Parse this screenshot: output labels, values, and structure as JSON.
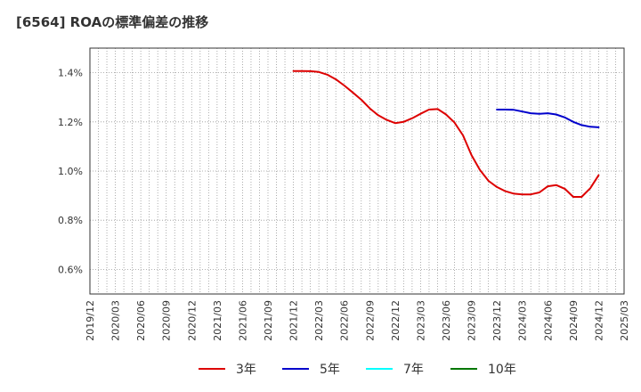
{
  "chart_data": {
    "type": "line",
    "title": "[6564]  ROAの標準偏差の推移",
    "xlabel": "",
    "ylabel": "",
    "ylim": [
      0.5,
      1.5
    ],
    "y_ticks": [
      {
        "value": 0.6,
        "label": "0.6%"
      },
      {
        "value": 0.8,
        "label": "0.8%"
      },
      {
        "value": 1.0,
        "label": "1.0%"
      },
      {
        "value": 1.2,
        "label": "1.2%"
      },
      {
        "value": 1.4,
        "label": "1.4%"
      }
    ],
    "x_categories": [
      "2019/12",
      "2020/03",
      "2020/06",
      "2020/09",
      "2020/12",
      "2021/03",
      "2021/06",
      "2021/09",
      "2021/12",
      "2022/03",
      "2022/06",
      "2022/09",
      "2022/12",
      "2023/03",
      "2023/06",
      "2023/09",
      "2023/12",
      "2024/03",
      "2024/06",
      "2024/09",
      "2024/12",
      "2025/03"
    ],
    "grid": true,
    "series": [
      {
        "name": "3年",
        "color": "#dd0000",
        "points": [
          {
            "x": 8.0,
            "y": 1.407
          },
          {
            "x": 8.33,
            "y": 1.407
          },
          {
            "x": 8.67,
            "y": 1.406
          },
          {
            "x": 9.0,
            "y": 1.403
          },
          {
            "x": 9.33,
            "y": 1.392
          },
          {
            "x": 9.67,
            "y": 1.373
          },
          {
            "x": 10.0,
            "y": 1.348
          },
          {
            "x": 10.33,
            "y": 1.32
          },
          {
            "x": 10.67,
            "y": 1.29
          },
          {
            "x": 11.0,
            "y": 1.255
          },
          {
            "x": 11.33,
            "y": 1.227
          },
          {
            "x": 11.67,
            "y": 1.208
          },
          {
            "x": 12.0,
            "y": 1.195
          },
          {
            "x": 12.33,
            "y": 1.2
          },
          {
            "x": 12.67,
            "y": 1.215
          },
          {
            "x": 13.0,
            "y": 1.233
          },
          {
            "x": 13.33,
            "y": 1.25
          },
          {
            "x": 13.67,
            "y": 1.252
          },
          {
            "x": 14.0,
            "y": 1.23
          },
          {
            "x": 14.33,
            "y": 1.198
          },
          {
            "x": 14.67,
            "y": 1.145
          },
          {
            "x": 15.0,
            "y": 1.065
          },
          {
            "x": 15.33,
            "y": 1.005
          },
          {
            "x": 15.67,
            "y": 0.96
          },
          {
            "x": 16.0,
            "y": 0.935
          },
          {
            "x": 16.33,
            "y": 0.918
          },
          {
            "x": 16.67,
            "y": 0.908
          },
          {
            "x": 17.0,
            "y": 0.905
          },
          {
            "x": 17.33,
            "y": 0.905
          },
          {
            "x": 17.67,
            "y": 0.913
          },
          {
            "x": 18.0,
            "y": 0.938
          },
          {
            "x": 18.33,
            "y": 0.943
          },
          {
            "x": 18.67,
            "y": 0.928
          },
          {
            "x": 19.0,
            "y": 0.895
          },
          {
            "x": 19.33,
            "y": 0.895
          },
          {
            "x": 19.67,
            "y": 0.93
          },
          {
            "x": 20.0,
            "y": 0.983
          }
        ]
      },
      {
        "name": "5年",
        "color": "#0000cc",
        "points": [
          {
            "x": 16.0,
            "y": 1.25
          },
          {
            "x": 16.33,
            "y": 1.25
          },
          {
            "x": 16.67,
            "y": 1.249
          },
          {
            "x": 17.0,
            "y": 1.242
          },
          {
            "x": 17.33,
            "y": 1.235
          },
          {
            "x": 17.67,
            "y": 1.233
          },
          {
            "x": 18.0,
            "y": 1.235
          },
          {
            "x": 18.33,
            "y": 1.23
          },
          {
            "x": 18.67,
            "y": 1.218
          },
          {
            "x": 19.0,
            "y": 1.2
          },
          {
            "x": 19.33,
            "y": 1.187
          },
          {
            "x": 19.67,
            "y": 1.18
          },
          {
            "x": 20.0,
            "y": 1.178
          }
        ]
      },
      {
        "name": "7年",
        "color": "#00ffff",
        "points": []
      },
      {
        "name": "10年",
        "color": "#007700",
        "points": []
      }
    ]
  }
}
